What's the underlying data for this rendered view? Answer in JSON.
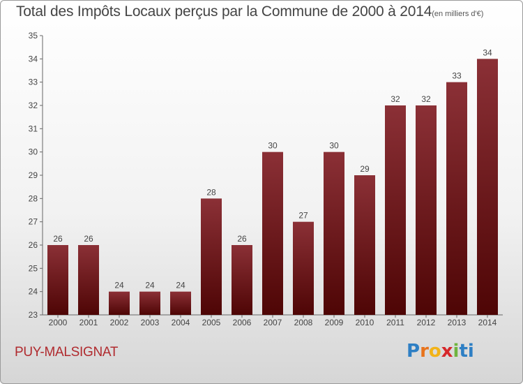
{
  "header": {
    "title": "Total des Impôts Locaux perçus par la Commune de 2000 à 2014",
    "unit": "(en milliers d'€)"
  },
  "footer": {
    "commune": "PUY-MALSIGNAT",
    "logo_letters": [
      "P",
      "r",
      "o",
      "x",
      "i",
      "ti"
    ]
  },
  "colors": {
    "bar_top": "#8b3036",
    "bar_bottom": "#4e0505",
    "commune_text": "#b02a2e"
  },
  "chart_data": {
    "type": "bar",
    "title": "Total des Impôts Locaux perçus par la Commune de 2000 à 2014",
    "xlabel": "",
    "ylabel": "",
    "categories": [
      "2000",
      "2001",
      "2002",
      "2003",
      "2004",
      "2005",
      "2006",
      "2007",
      "2008",
      "2009",
      "2010",
      "2011",
      "2012",
      "2013",
      "2014"
    ],
    "values": [
      26,
      26,
      24,
      24,
      24,
      28,
      26,
      30,
      27,
      30,
      29,
      32,
      32,
      33,
      34
    ],
    "ylim": [
      23,
      35
    ],
    "yticks": [
      23,
      24,
      25,
      26,
      27,
      28,
      29,
      30,
      31,
      32,
      33,
      34,
      35
    ],
    "grid": false,
    "legend": "none"
  }
}
